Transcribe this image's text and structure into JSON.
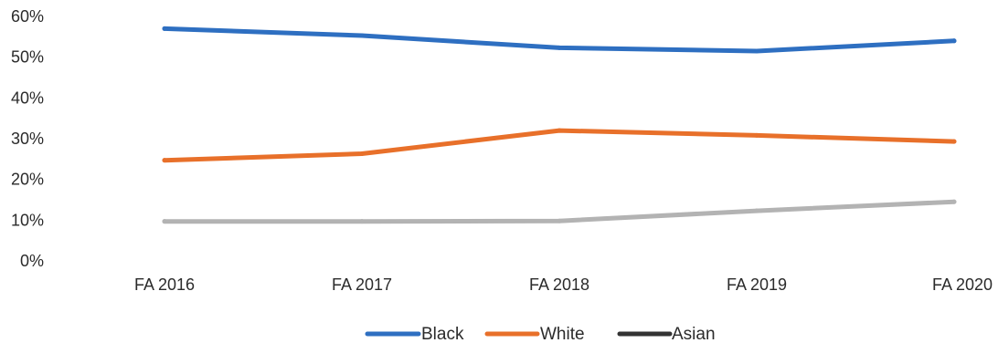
{
  "chart_data": {
    "type": "line",
    "categories": [
      "FA 2016",
      "FA 2017",
      "FA 2018",
      "FA 2019",
      "FA 2020"
    ],
    "y_ticks": [
      "0%",
      "10%",
      "20%",
      "30%",
      "40%",
      "50%",
      "60%"
    ],
    "ylim": [
      0,
      60
    ],
    "grid": false,
    "legend_position": "bottom",
    "series": [
      {
        "name": "Black",
        "color": "#2e6fc1",
        "values": [
          57,
          55.3,
          52.3,
          51.5,
          54
        ]
      },
      {
        "name": "White",
        "color": "#e8702a",
        "values": [
          24.7,
          26.3,
          32,
          30.8,
          29.3
        ]
      },
      {
        "name": "Asian",
        "color": "#b3b3b3",
        "legend_color": "#333333",
        "values": [
          9.7,
          9.7,
          9.8,
          12.3,
          14.5
        ]
      }
    ]
  }
}
